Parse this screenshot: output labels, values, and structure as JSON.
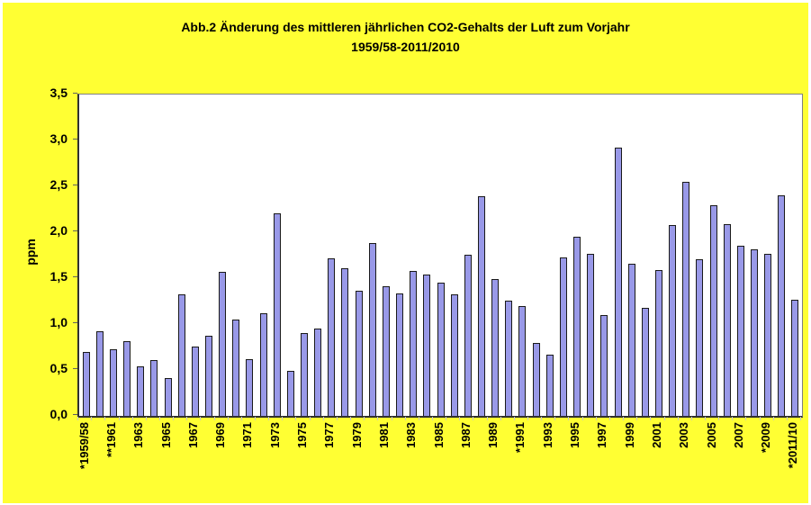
{
  "chart_data": {
    "type": "bar",
    "title": "Abb.2 Änderung des mittleren jährlichen CO2-Gehalts der Luft zum Vorjahr",
    "subtitle": "1959/58-2011/2010",
    "ylabel": "ppm",
    "ylim": [
      0,
      3.5
    ],
    "ytick_step": 0.5,
    "ytick_labels": [
      "0,0",
      "0,5",
      "1,0",
      "1,5",
      "2,0",
      "2,5",
      "3,0",
      "3,5"
    ],
    "grid": false,
    "legend": "none",
    "first_year": 1959,
    "last_year": 2011,
    "years": [
      1959,
      1960,
      1961,
      1962,
      1963,
      1964,
      1965,
      1966,
      1967,
      1968,
      1969,
      1970,
      1971,
      1972,
      1973,
      1974,
      1975,
      1976,
      1977,
      1978,
      1979,
      1980,
      1981,
      1982,
      1983,
      1984,
      1985,
      1986,
      1987,
      1988,
      1989,
      1990,
      1991,
      1992,
      1993,
      1994,
      1995,
      1996,
      1997,
      1998,
      1999,
      2000,
      2001,
      2002,
      2003,
      2004,
      2005,
      2006,
      2007,
      2008,
      2009,
      2010,
      2011
    ],
    "values": [
      0.7,
      0.92,
      0.73,
      0.81,
      0.54,
      0.61,
      0.41,
      1.32,
      0.76,
      0.87,
      1.57,
      1.05,
      0.62,
      1.12,
      2.21,
      0.49,
      0.9,
      0.95,
      1.72,
      1.61,
      1.36,
      1.88,
      1.41,
      1.33,
      1.58,
      1.54,
      1.45,
      1.32,
      1.76,
      2.39,
      1.49,
      1.26,
      1.2,
      0.79,
      0.67,
      1.73,
      1.95,
      1.77,
      1.1,
      2.92,
      1.66,
      1.18,
      1.59,
      2.08,
      2.55,
      1.71,
      2.29,
      2.09,
      1.85,
      1.81,
      1.77,
      2.4,
      1.27
    ],
    "x_tick_labels": [
      "*1959/58",
      "**1961",
      "1963",
      "1965",
      "1967",
      "1969",
      "1971",
      "1973",
      "1975",
      "1977",
      "1979",
      "1981",
      "1983",
      "1985",
      "1987",
      "1989",
      "*1991",
      "1993",
      "1995",
      "1997",
      "1999",
      "2001",
      "2003",
      "2005",
      "2007",
      "*2009",
      "*2011/10"
    ],
    "x_tick_label_every": 2,
    "colors": {
      "background": "#ffff33",
      "plot_background": "#ffffff",
      "bar_fill": "#9999e8",
      "bar_border": "#1a1a1a",
      "axis": "#303030",
      "text": "#000000"
    }
  }
}
